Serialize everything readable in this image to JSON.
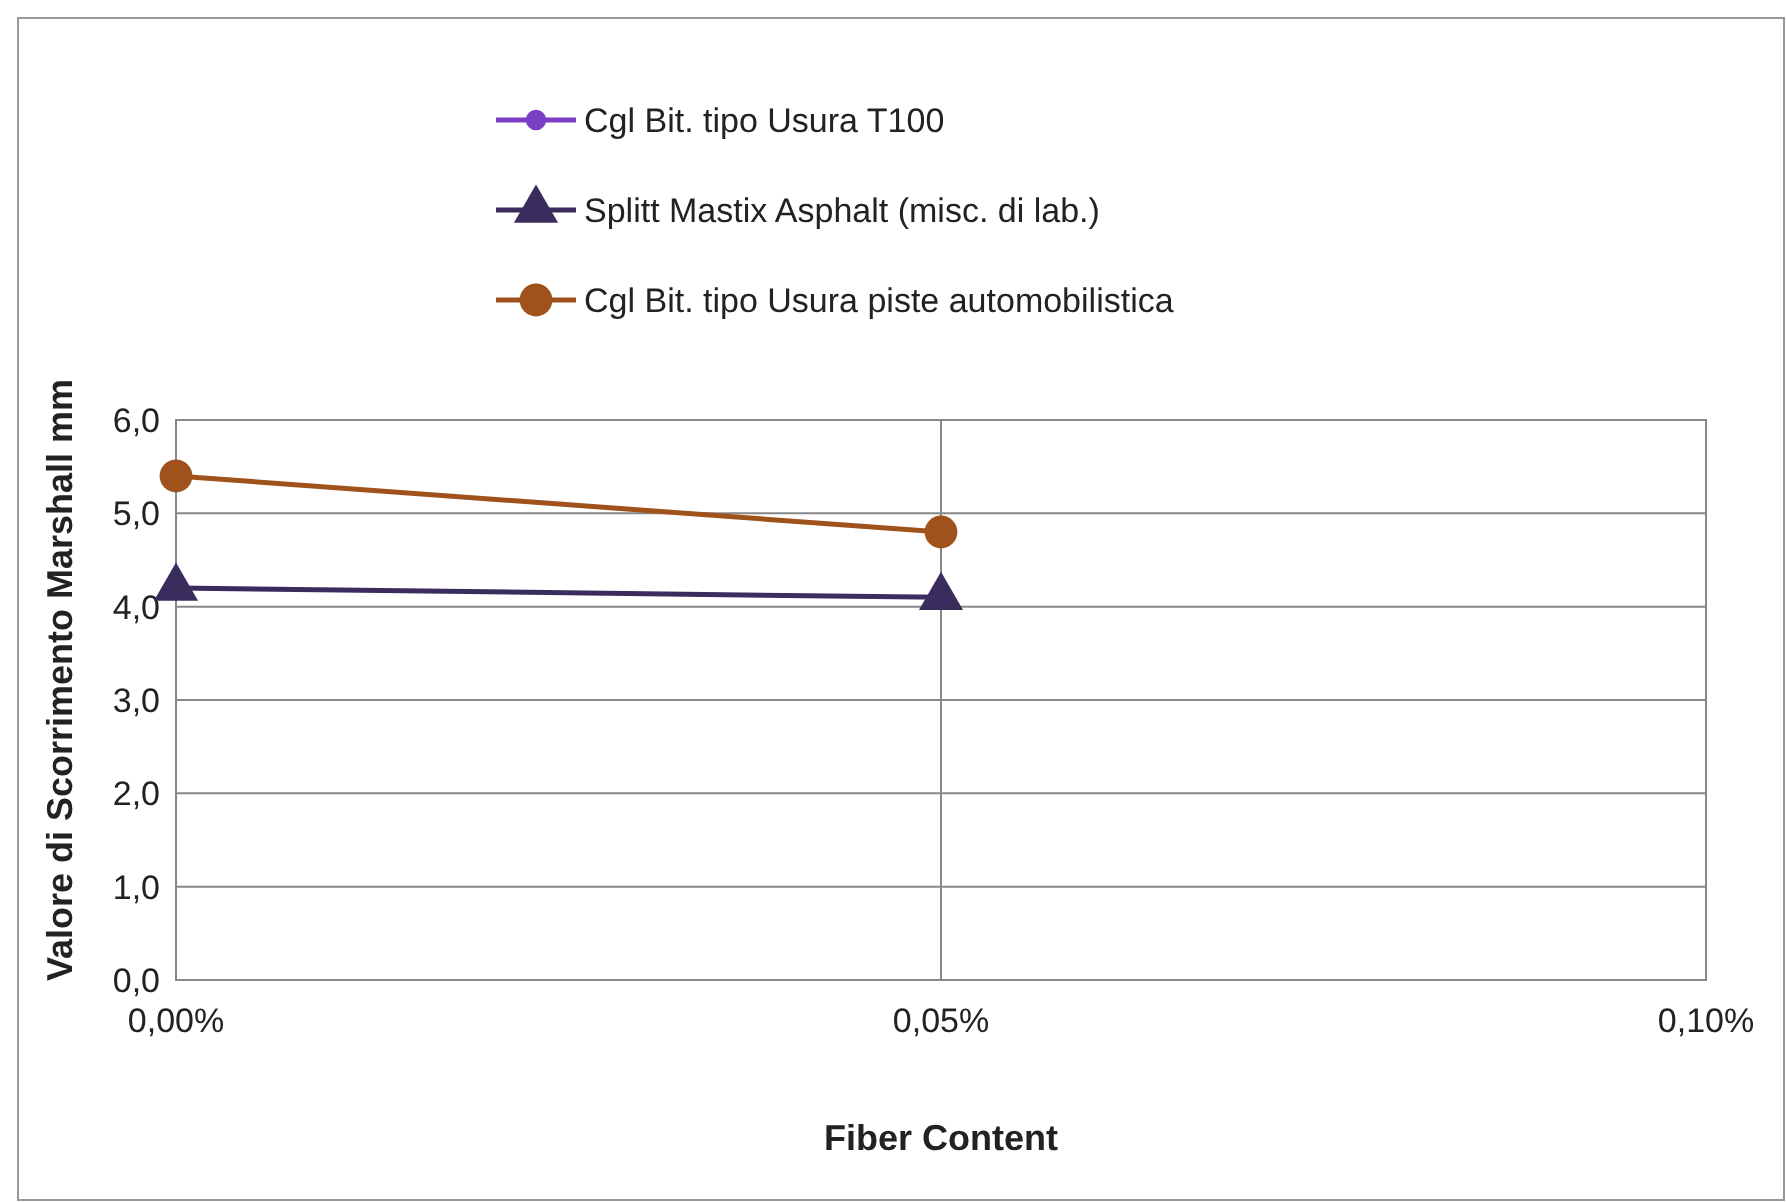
{
  "chart_data": {
    "type": "line",
    "xlabel": "Fiber Content",
    "ylabel": "Valore di Scorrimento Marshall mm",
    "x": [
      0,
      0.05
    ],
    "series": [
      {
        "name": "Cgl Bit. tipo Usura T100",
        "color": "#7b3fc4",
        "values": [
          null,
          null
        ],
        "marker": "circle"
      },
      {
        "name": "Splitt Mastix Asphalt (misc. di lab.)",
        "color": "#3b2c5e",
        "values": [
          4.2,
          4.1
        ],
        "marker": "triangle"
      },
      {
        "name": "Cgl Bit. tipo Usura piste automobilistica",
        "color": "#a0521c",
        "values": [
          5.4,
          4.8
        ],
        "marker": "circle"
      }
    ],
    "xlim": [
      0,
      0.1
    ],
    "xticks": [
      {
        "value": 0,
        "label": "0,00%"
      },
      {
        "value": 0.05,
        "label": "0,05%"
      },
      {
        "value": 0.1,
        "label": "0,10%"
      }
    ],
    "ylim": [
      0,
      6
    ],
    "yticks": [
      {
        "value": 0,
        "label": "0,0"
      },
      {
        "value": 1,
        "label": "1,0"
      },
      {
        "value": 2,
        "label": "2,0"
      },
      {
        "value": 3,
        "label": "3,0"
      },
      {
        "value": 4,
        "label": "4,0"
      },
      {
        "value": 5,
        "label": "5,0"
      },
      {
        "value": 6,
        "label": "6,0"
      }
    ],
    "grid": true,
    "legend": "top"
  }
}
